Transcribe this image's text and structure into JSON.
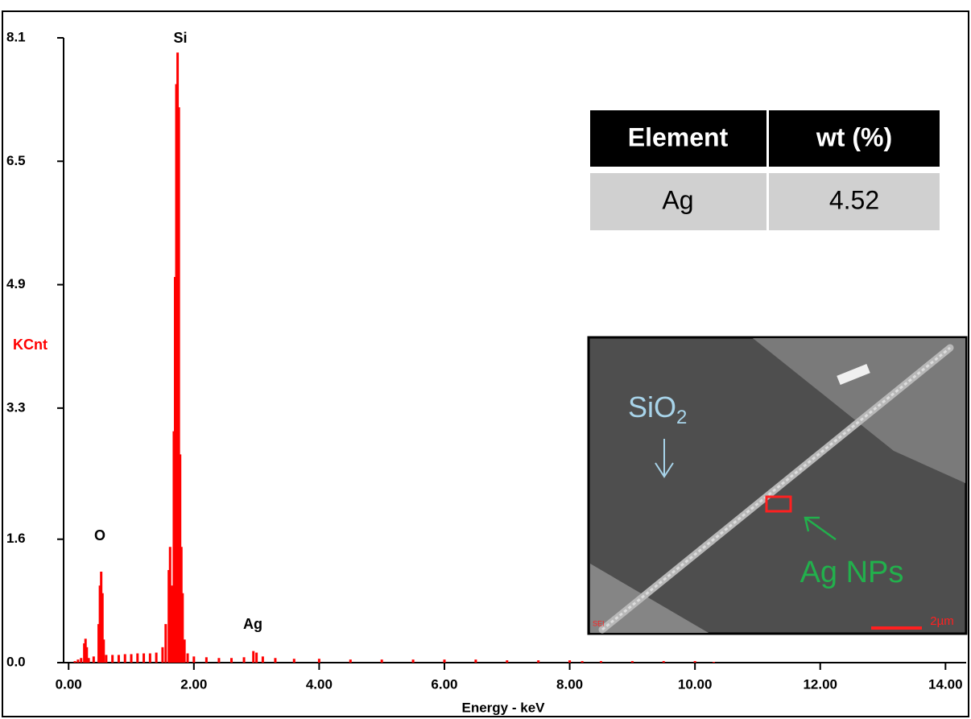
{
  "chart_data": {
    "type": "spectrum",
    "y_label": "KCnt",
    "x_label": "Energy - keV",
    "color": "#ff0000",
    "x": [
      0.1,
      0.15,
      0.2,
      0.25,
      0.27,
      0.29,
      0.32,
      0.4,
      0.48,
      0.5,
      0.52,
      0.54,
      0.56,
      0.6,
      0.7,
      0.8,
      0.9,
      1.0,
      1.1,
      1.2,
      1.3,
      1.4,
      1.5,
      1.55,
      1.6,
      1.62,
      1.65,
      1.68,
      1.7,
      1.72,
      1.74,
      1.76,
      1.78,
      1.8,
      1.82,
      1.85,
      1.9,
      2.0,
      2.2,
      2.4,
      2.6,
      2.8,
      2.95,
      3.0,
      3.1,
      3.3,
      3.6,
      4.0,
      4.5,
      5.0,
      5.5,
      6.0,
      6.5,
      7.0,
      7.5,
      8.0,
      8.2,
      8.5,
      9.0,
      9.5,
      10.0,
      10.3
    ],
    "values": [
      0.02,
      0.04,
      0.06,
      0.25,
      0.31,
      0.2,
      0.06,
      0.08,
      0.5,
      1.0,
      1.18,
      0.9,
      0.3,
      0.1,
      0.1,
      0.1,
      0.11,
      0.11,
      0.12,
      0.12,
      0.12,
      0.13,
      0.2,
      0.5,
      1.2,
      1.5,
      1.0,
      3.0,
      5.0,
      7.5,
      7.91,
      7.2,
      2.7,
      1.5,
      0.9,
      0.3,
      0.12,
      0.08,
      0.07,
      0.06,
      0.06,
      0.07,
      0.15,
      0.13,
      0.08,
      0.06,
      0.05,
      0.05,
      0.04,
      0.04,
      0.04,
      0.04,
      0.04,
      0.03,
      0.03,
      0.03,
      0.02,
      0.02,
      0.02,
      0.02,
      0.02,
      0.01
    ],
    "xlim": [
      -0.08,
      14.33
    ],
    "ylim": [
      0,
      8.1
    ],
    "xticks": [
      {
        "value": 0,
        "label": "0.00"
      },
      {
        "value": 2,
        "label": "2.00"
      },
      {
        "value": 4,
        "label": "4.00"
      },
      {
        "value": 6,
        "label": "6.00"
      },
      {
        "value": 8,
        "label": "8.00"
      },
      {
        "value": 10,
        "label": "10.00"
      },
      {
        "value": 12,
        "label": "12.00"
      },
      {
        "value": 14,
        "label": "14.00"
      }
    ],
    "yticks": [
      {
        "value": 0,
        "label": "0.0"
      },
      1.6,
      3.3,
      4.9,
      6.5,
      8.1
    ],
    "annotations": [
      "Si",
      "O",
      "Ag"
    ]
  },
  "table": {
    "header": [
      "Element",
      "wt (%)"
    ],
    "rows": [
      [
        "Ag",
        "4.52"
      ]
    ]
  },
  "inset": {
    "labels": {
      "sio2": [
        "SiO",
        "2"
      ],
      "ag_nps": "Ag NPs",
      "scale": "2µm",
      "mode": "SEI"
    }
  }
}
